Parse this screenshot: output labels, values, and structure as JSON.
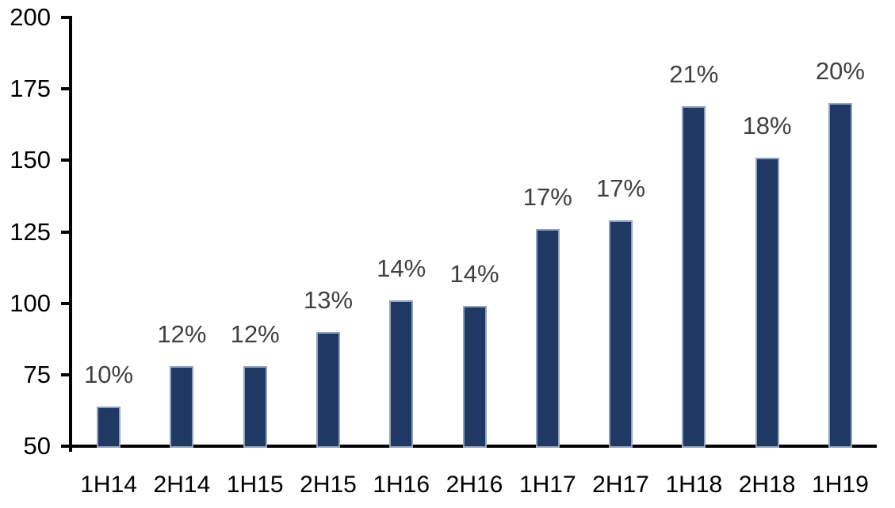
{
  "chart_data": {
    "type": "bar",
    "categories": [
      "1H14",
      "2H14",
      "1H15",
      "2H15",
      "1H16",
      "2H16",
      "1H17",
      "2H17",
      "1H18",
      "2H18",
      "1H19"
    ],
    "values": [
      64,
      78,
      78,
      90,
      101,
      99,
      126,
      129,
      169,
      151,
      170
    ],
    "bar_labels": [
      "10%",
      "12%",
      "12%",
      "13%",
      "14%",
      "14%",
      "17%",
      "17%",
      "21%",
      "18%",
      "20%"
    ],
    "title": "",
    "xlabel": "",
    "ylabel": "",
    "ylim": [
      50,
      200
    ],
    "yticks": [
      200,
      175,
      150,
      125,
      100,
      75,
      50
    ],
    "grid": false,
    "legend": false,
    "colors": {
      "bar_fill": "#1F3864",
      "bar_border": "#93A2BC",
      "data_label_text": "#404040",
      "axis_text": "#000000",
      "axis_line": "#000000",
      "background": "#FFFFFF"
    }
  }
}
